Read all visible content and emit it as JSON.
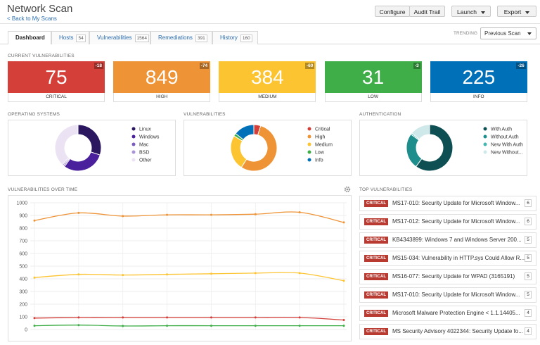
{
  "header": {
    "title": "Network Scan",
    "back_link": "< Back to My Scans",
    "buttons": [
      "Configure",
      "Audit Trail",
      "Launch",
      "Export"
    ]
  },
  "tabs": [
    {
      "label": "Dashboard"
    },
    {
      "label": "Hosts",
      "count": 54
    },
    {
      "label": "Vulnerabilities",
      "count": 1564
    },
    {
      "label": "Remediations",
      "count": 391
    },
    {
      "label": "History",
      "count": 160
    }
  ],
  "trending": {
    "label": "TRENDING",
    "selected": "Previous Scan"
  },
  "current_vulnerabilities": {
    "title": "CURRENT VULNERABILITIES",
    "items": [
      {
        "label": "CRITICAL",
        "value": 75,
        "change": -18,
        "color": "#d43f3a"
      },
      {
        "label": "HIGH",
        "value": 849,
        "change": -74,
        "color": "#ee9336"
      },
      {
        "label": "MEDIUM",
        "value": 384,
        "change": -60,
        "color": "#fdc431"
      },
      {
        "label": "LOW",
        "value": 31,
        "change": -3,
        "color": "#3fae49"
      },
      {
        "label": "INFO",
        "value": 225,
        "change": -26,
        "color": "#0071b9"
      }
    ]
  },
  "chart_data": [
    {
      "type": "pie",
      "title": "OPERATING SYSTEMS",
      "categories": [
        "Linux",
        "Windows",
        "Mac",
        "BSD",
        "Other"
      ],
      "values": [
        30,
        30,
        1,
        1,
        38
      ],
      "colors": [
        "#2a1760",
        "#4a209c",
        "#7a5cc0",
        "#a994d8",
        "#ebe3f4"
      ]
    },
    {
      "type": "pie",
      "title": "VULNERABILITIES",
      "categories": [
        "Critical",
        "High",
        "Medium",
        "Low",
        "Info"
      ],
      "values": [
        75,
        849,
        384,
        31,
        225
      ],
      "colors": [
        "#d43f3a",
        "#ee9336",
        "#fdc431",
        "#3fae49",
        "#0071b9"
      ]
    },
    {
      "type": "pie",
      "title": "AUTHENTICATION",
      "categories": [
        "With Auth",
        "Without Auth",
        "New With Auth",
        "New Without..."
      ],
      "values": [
        60,
        25,
        1,
        14
      ],
      "colors": [
        "#0d4f53",
        "#1e8e8c",
        "#45b5b0",
        "#cfe9ea"
      ]
    },
    {
      "type": "line",
      "title": "VULNERABILITIES OVER TIME",
      "ylim": [
        0,
        1000
      ],
      "yticks": [
        0,
        100,
        200,
        300,
        400,
        500,
        600,
        700,
        800,
        900,
        1000
      ],
      "grid": true,
      "series": [
        {
          "color": "#ee9336",
          "values": [
            860,
            920,
            895,
            905,
            905,
            910,
            925,
            845
          ]
        },
        {
          "color": "#fdc431",
          "values": [
            410,
            435,
            430,
            435,
            440,
            445,
            445,
            385
          ]
        },
        {
          "color": "#d43f3a",
          "values": [
            90,
            95,
            95,
            95,
            95,
            95,
            95,
            75
          ]
        },
        {
          "color": "#3fae49",
          "values": [
            30,
            35,
            28,
            30,
            30,
            30,
            30,
            30
          ]
        }
      ]
    }
  ],
  "top_vulnerabilities": {
    "title": "TOP VULNERABILITIES",
    "items": [
      {
        "severity": "CRITICAL",
        "name": "MS17-010: Security Update for Microsoft Window...",
        "count": 6
      },
      {
        "severity": "CRITICAL",
        "name": "MS17-012: Security Update for Microsoft Window...",
        "count": 6
      },
      {
        "severity": "CRITICAL",
        "name": "KB4343899: Windows 7 and Windows Server 200...",
        "count": 5
      },
      {
        "severity": "CRITICAL",
        "name": "MS15-034: Vulnerability in HTTP.sys Could Allow R...",
        "count": 5
      },
      {
        "severity": "CRITICAL",
        "name": "MS16-077: Security Update for WPAD (3165191)",
        "count": 5
      },
      {
        "severity": "CRITICAL",
        "name": "MS17-010: Security Update for Microsoft Window...",
        "count": 5
      },
      {
        "severity": "CRITICAL",
        "name": "Microsoft Malware Protection Engine < 1.1.14405...",
        "count": 4
      },
      {
        "severity": "CRITICAL",
        "name": "MS Security Advisory 4022344: Security Update fo...",
        "count": 4
      }
    ]
  }
}
